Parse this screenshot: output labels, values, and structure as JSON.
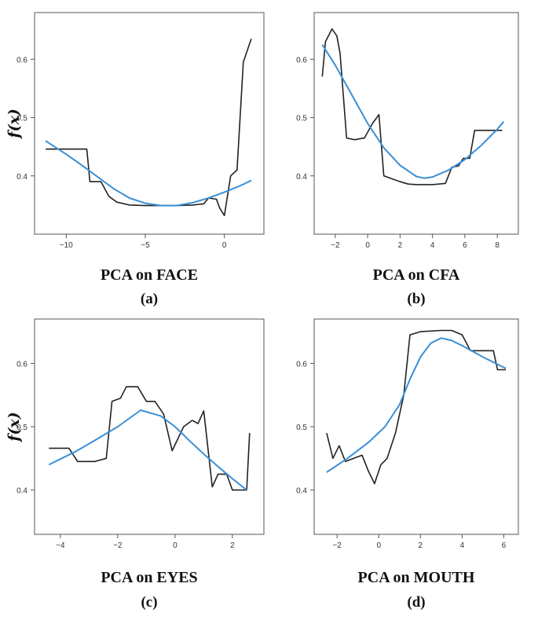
{
  "colors": {
    "raw": "#222222",
    "fit": "#3a8fd6",
    "axis": "#555555"
  },
  "chart_data": [
    {
      "type": "line",
      "panel": "(a)",
      "xlabel": "PCA on FACE",
      "ylabel": "f(x)",
      "xlim": [
        -12,
        2.5
      ],
      "ylim": [
        0.3,
        0.68
      ],
      "xticks": [
        -10,
        -5,
        0
      ],
      "yticks": [
        0.4,
        0.5,
        0.6
      ],
      "series": [
        {
          "role": "raw",
          "points": [
            [
              -11.3,
              0.446
            ],
            [
              -8.7,
              0.446
            ],
            [
              -8.5,
              0.39
            ],
            [
              -7.8,
              0.39
            ],
            [
              -7.3,
              0.365
            ],
            [
              -6.8,
              0.355
            ],
            [
              -6,
              0.35
            ],
            [
              -5,
              0.349
            ],
            [
              -3,
              0.349
            ],
            [
              -2,
              0.35
            ],
            [
              -1.3,
              0.352
            ],
            [
              -1,
              0.362
            ],
            [
              -0.5,
              0.36
            ],
            [
              -0.3,
              0.345
            ],
            [
              0,
              0.332
            ],
            [
              0.4,
              0.4
            ],
            [
              0.8,
              0.41
            ],
            [
              1.2,
              0.595
            ],
            [
              1.7,
              0.635
            ]
          ]
        },
        {
          "role": "fit",
          "points": [
            [
              -11.3,
              0.46
            ],
            [
              -10,
              0.437
            ],
            [
              -9,
              0.418
            ],
            [
              -8,
              0.398
            ],
            [
              -7,
              0.378
            ],
            [
              -6,
              0.362
            ],
            [
              -5,
              0.353
            ],
            [
              -4,
              0.349
            ],
            [
              -3,
              0.349
            ],
            [
              -2,
              0.354
            ],
            [
              -1,
              0.362
            ],
            [
              0,
              0.372
            ],
            [
              1,
              0.383
            ],
            [
              1.7,
              0.392
            ]
          ]
        }
      ]
    },
    {
      "type": "line",
      "panel": "(b)",
      "xlabel": "PCA on CFA",
      "ylabel": "",
      "xlim": [
        -3.3,
        9.3
      ],
      "ylim": [
        0.3,
        0.68
      ],
      "xticks": [
        -2,
        0,
        2,
        4,
        6,
        8
      ],
      "yticks": [
        0.4,
        0.5,
        0.6
      ],
      "series": [
        {
          "role": "raw",
          "points": [
            [
              -2.8,
              0.57
            ],
            [
              -2.6,
              0.63
            ],
            [
              -2.2,
              0.652
            ],
            [
              -1.9,
              0.64
            ],
            [
              -1.7,
              0.61
            ],
            [
              -1.3,
              0.465
            ],
            [
              -0.8,
              0.462
            ],
            [
              -0.2,
              0.465
            ],
            [
              0.3,
              0.49
            ],
            [
              0.7,
              0.505
            ],
            [
              1,
              0.4
            ],
            [
              1.5,
              0.395
            ],
            [
              2,
              0.39
            ],
            [
              2.5,
              0.386
            ],
            [
              3,
              0.385
            ],
            [
              4,
              0.385
            ],
            [
              4.8,
              0.387
            ],
            [
              5.2,
              0.415
            ],
            [
              5.6,
              0.417
            ],
            [
              5.9,
              0.43
            ],
            [
              6.3,
              0.43
            ],
            [
              6.6,
              0.478
            ],
            [
              7.3,
              0.478
            ],
            [
              8.3,
              0.478
            ]
          ]
        },
        {
          "role": "fit",
          "points": [
            [
              -2.8,
              0.625
            ],
            [
              -2,
              0.59
            ],
            [
              -1,
              0.54
            ],
            [
              0,
              0.49
            ],
            [
              1,
              0.448
            ],
            [
              2,
              0.418
            ],
            [
              3,
              0.399
            ],
            [
              3.5,
              0.396
            ],
            [
              4,
              0.398
            ],
            [
              5,
              0.41
            ],
            [
              6,
              0.428
            ],
            [
              7,
              0.452
            ],
            [
              8,
              0.48
            ],
            [
              8.4,
              0.493
            ]
          ]
        }
      ]
    },
    {
      "type": "line",
      "panel": "(c)",
      "xlabel": "PCA on EYES",
      "ylabel": "f(x)",
      "xlim": [
        -4.9,
        3.1
      ],
      "ylim": [
        0.33,
        0.67
      ],
      "xticks": [
        -4,
        -2,
        0,
        2
      ],
      "yticks": [
        0.4,
        0.5,
        0.6
      ],
      "series": [
        {
          "role": "raw",
          "points": [
            [
              -4.4,
              0.466
            ],
            [
              -3.7,
              0.466
            ],
            [
              -3.4,
              0.445
            ],
            [
              -2.8,
              0.445
            ],
            [
              -2.4,
              0.45
            ],
            [
              -2.2,
              0.54
            ],
            [
              -1.9,
              0.545
            ],
            [
              -1.7,
              0.563
            ],
            [
              -1.3,
              0.563
            ],
            [
              -1,
              0.54
            ],
            [
              -0.7,
              0.54
            ],
            [
              -0.4,
              0.52
            ],
            [
              -0.1,
              0.462
            ],
            [
              0.3,
              0.5
            ],
            [
              0.6,
              0.51
            ],
            [
              0.8,
              0.505
            ],
            [
              1,
              0.525
            ],
            [
              1.3,
              0.405
            ],
            [
              1.5,
              0.425
            ],
            [
              1.8,
              0.425
            ],
            [
              2,
              0.4
            ],
            [
              2.3,
              0.4
            ],
            [
              2.5,
              0.4
            ],
            [
              2.6,
              0.49
            ]
          ]
        },
        {
          "role": "fit",
          "points": [
            [
              -4.4,
              0.44
            ],
            [
              -3.5,
              0.46
            ],
            [
              -3,
              0.473
            ],
            [
              -2,
              0.5
            ],
            [
              -1.2,
              0.526
            ],
            [
              -0.5,
              0.517
            ],
            [
              0,
              0.5
            ],
            [
              0.5,
              0.478
            ],
            [
              1,
              0.457
            ],
            [
              1.5,
              0.437
            ],
            [
              2,
              0.418
            ],
            [
              2.5,
              0.4
            ]
          ]
        }
      ]
    },
    {
      "type": "line",
      "panel": "(d)",
      "xlabel": "PCA on MOUTH",
      "ylabel": "",
      "xlim": [
        -3.1,
        6.7
      ],
      "ylim": [
        0.33,
        0.67
      ],
      "xticks": [
        -2,
        0,
        2,
        4,
        6
      ],
      "yticks": [
        0.4,
        0.5,
        0.6
      ],
      "series": [
        {
          "role": "raw",
          "points": [
            [
              -2.5,
              0.49
            ],
            [
              -2.2,
              0.45
            ],
            [
              -1.9,
              0.47
            ],
            [
              -1.6,
              0.445
            ],
            [
              -1.2,
              0.45
            ],
            [
              -0.8,
              0.455
            ],
            [
              -0.5,
              0.43
            ],
            [
              -0.2,
              0.41
            ],
            [
              0.1,
              0.44
            ],
            [
              0.4,
              0.45
            ],
            [
              0.8,
              0.49
            ],
            [
              1.2,
              0.55
            ],
            [
              1.5,
              0.645
            ],
            [
              2,
              0.65
            ],
            [
              3,
              0.652
            ],
            [
              3.5,
              0.652
            ],
            [
              4,
              0.645
            ],
            [
              4.4,
              0.62
            ],
            [
              5.5,
              0.62
            ],
            [
              5.7,
              0.59
            ],
            [
              6.1,
              0.59
            ]
          ]
        },
        {
          "role": "fit",
          "points": [
            [
              -2.5,
              0.428
            ],
            [
              -1.5,
              0.45
            ],
            [
              -0.5,
              0.475
            ],
            [
              0.3,
              0.5
            ],
            [
              1,
              0.535
            ],
            [
              1.5,
              0.575
            ],
            [
              2,
              0.61
            ],
            [
              2.5,
              0.632
            ],
            [
              3,
              0.64
            ],
            [
              3.5,
              0.636
            ],
            [
              4,
              0.628
            ],
            [
              5,
              0.61
            ],
            [
              6.1,
              0.592
            ]
          ]
        }
      ]
    }
  ]
}
